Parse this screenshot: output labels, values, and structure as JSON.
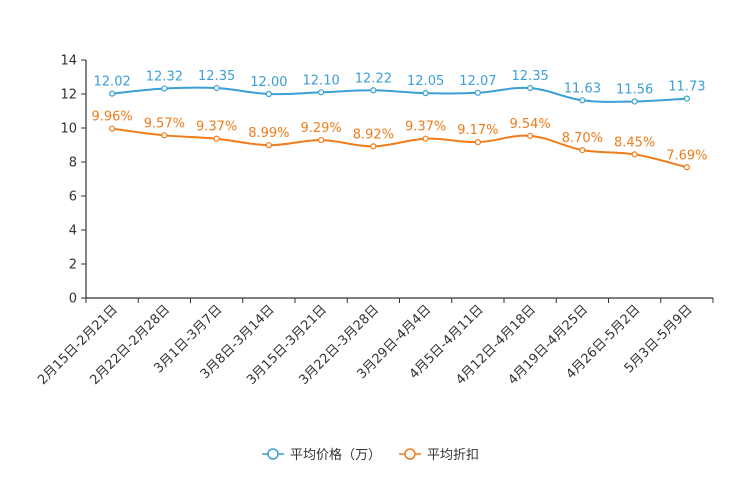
{
  "chart_data": {
    "type": "line",
    "title": "",
    "xlabel": "",
    "ylabel": "",
    "ylim": [
      0,
      14
    ],
    "yticks": [
      0,
      2,
      4,
      6,
      8,
      10,
      12,
      14
    ],
    "grid": false,
    "legend_position": "bottom-center",
    "categories": [
      "2月15日-2月21日",
      "2月22日-2月28日",
      "3月1日-3月7日",
      "3月8日-3月14日",
      "3月15日-3月21日",
      "3月22日-3月28日",
      "3月29日-4月4日",
      "4月5日-4月11日",
      "4月12日-4月18日",
      "4月19日-4月25日",
      "4月26日-5月2日",
      "5月3日-5月9日"
    ],
    "series": [
      {
        "name": "平均价格（万）",
        "color": "#3a9fd6",
        "values": [
          12.02,
          12.32,
          12.35,
          12.0,
          12.1,
          12.22,
          12.05,
          12.07,
          12.35,
          11.63,
          11.56,
          11.73
        ],
        "labels": [
          "12.02",
          "12.32",
          "12.35",
          "12.00",
          "12.10",
          "12.22",
          "12.05",
          "12.07",
          "12.35",
          "11.63",
          "11.56",
          "11.73"
        ]
      },
      {
        "name": "平均折扣",
        "color": "#f07c1a",
        "values": [
          9.96,
          9.57,
          9.37,
          8.99,
          9.29,
          8.92,
          9.37,
          9.17,
          9.54,
          8.7,
          8.45,
          7.69
        ],
        "labels": [
          "9.96%",
          "9.57%",
          "9.37%",
          "8.99%",
          "9.29%",
          "8.92%",
          "9.37%",
          "9.17%",
          "9.54%",
          "8.70%",
          "8.45%",
          "7.69%"
        ]
      }
    ]
  }
}
